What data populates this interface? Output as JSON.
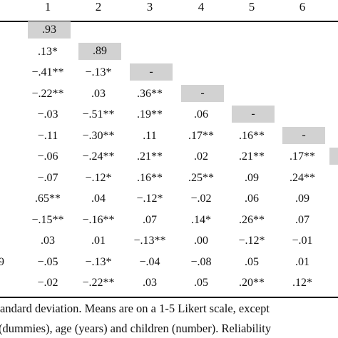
{
  "table": {
    "column_headers": [
      "1",
      "2",
      "3",
      "4",
      "5",
      "6"
    ],
    "rows": [
      {
        "label": "",
        "cells": [
          ".93",
          "",
          "",
          "",
          "",
          ""
        ],
        "diag": 0
      },
      {
        "label": "",
        "cells": [
          ".13*",
          ".89",
          "",
          "",
          "",
          ""
        ],
        "diag": 1
      },
      {
        "label": "",
        "cells": [
          "−.41**",
          "−.13*",
          "-",
          "",
          "",
          ""
        ],
        "diag": 2
      },
      {
        "label": "",
        "cells": [
          "−.22**",
          ".03",
          ".36**",
          "-",
          "",
          ""
        ],
        "diag": 3
      },
      {
        "label": "",
        "cells": [
          "−.03",
          "−.51**",
          ".19**",
          ".06",
          "-",
          ""
        ],
        "diag": 4
      },
      {
        "label": "",
        "cells": [
          "−.11",
          "−.30**",
          ".11",
          ".17**",
          ".16**",
          "-"
        ],
        "diag": 5
      },
      {
        "label": "",
        "cells": [
          "−.06",
          "−.24**",
          ".21**",
          ".02",
          ".21**",
          ".17**"
        ],
        "diag": -1
      },
      {
        "label": "",
        "cells": [
          "−.07",
          "−.12*",
          ".16**",
          ".25**",
          ".09",
          ".24**"
        ],
        "diag": -1
      },
      {
        "label": "",
        "cells": [
          ".65**",
          ".04",
          "−.12*",
          "−.02",
          ".06",
          ".09"
        ],
        "diag": -1
      },
      {
        "label": "",
        "cells": [
          "−.15**",
          "−.16**",
          ".07",
          ".14*",
          ".26**",
          ".07"
        ],
        "diag": -1
      },
      {
        "label": "",
        "cells": [
          ".03",
          ".01",
          "−.13**",
          ".00",
          "−.12*",
          "−.01"
        ],
        "diag": -1
      },
      {
        "label": "9",
        "cells": [
          "−.05",
          "−.13*",
          "−.04",
          "−.08",
          ".05",
          ".01"
        ],
        "diag": -1
      },
      {
        "label": "",
        "cells": [
          "−.02",
          "−.22**",
          ".03",
          ".05",
          ".20**",
          ".12*"
        ],
        "diag": -1
      }
    ]
  },
  "footnote": {
    "line1": "andard deviation. Means are on a 1-5 Likert scale, except",
    "line2": "(dummies), age (years) and children (number). Reliability"
  },
  "colors": {
    "diagonal_shade": "#d2d2d2",
    "rule": "#111111"
  }
}
